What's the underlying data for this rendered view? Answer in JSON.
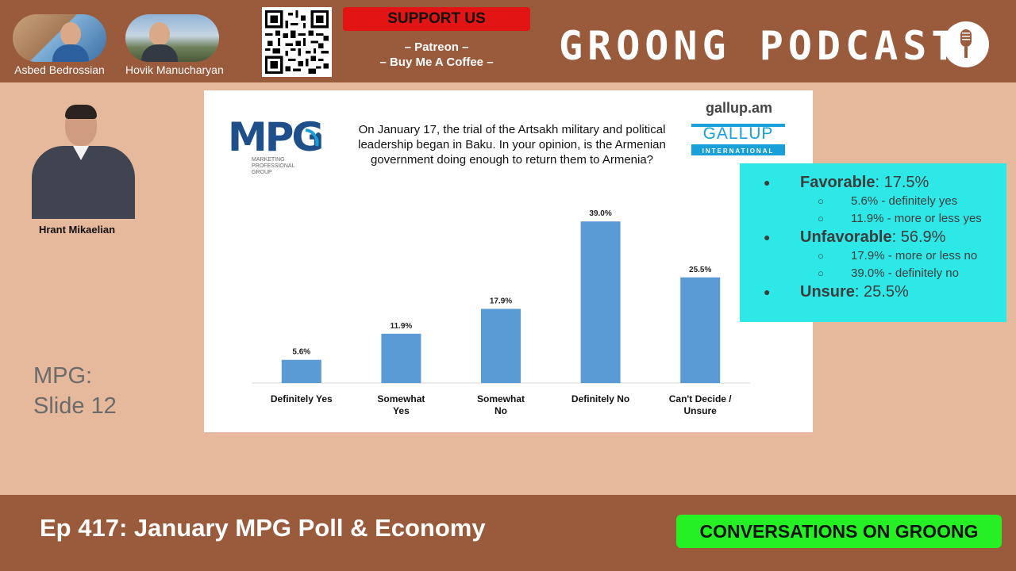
{
  "header": {
    "hosts": [
      {
        "name": "Asbed Bedrossian"
      },
      {
        "name": "Hovik Manucharyan"
      }
    ],
    "support_label": "SUPPORT US",
    "support_links": [
      "– Patreon –",
      "– Buy Me A Coffee –"
    ],
    "show_title": "GROONG PODCAST",
    "qr_icon": "qr-code-icon",
    "mic_icon": "microphone-icon"
  },
  "guest": {
    "name": "Hrant Mikaelian"
  },
  "slide_label": {
    "line1": "MPG:",
    "line2": "Slide 12"
  },
  "slide": {
    "mpg_logo_text": "MPG",
    "mpg_logo_sub": "MARKETING PROFESSIONAL GROUP",
    "question": "On January 17, the trial of the Artsakh military and political leadership began in Baku. In your opinion, is the Armenian government doing enough to return them to Armenia?",
    "gallup_url": "gallup.am",
    "gallup_logo_main": "GALLUP",
    "gallup_logo_sub": "INTERNATIONAL"
  },
  "chart_data": {
    "type": "bar",
    "categories": [
      [
        "Definitely Yes"
      ],
      [
        "Somewhat",
        "Yes"
      ],
      [
        "Somewhat",
        "No"
      ],
      [
        "Definitely No"
      ],
      [
        "Can't Decide /",
        "Unsure"
      ]
    ],
    "values": [
      5.6,
      11.9,
      17.9,
      39.0,
      25.5
    ],
    "value_labels": [
      "5.6%",
      "11.9%",
      "17.9%",
      "39.0%",
      "25.5%"
    ],
    "ylim": [
      0,
      40
    ],
    "bar_color": "#5b9bd5",
    "grid": false,
    "legend": "none"
  },
  "summary": {
    "favorable_label": "Favorable",
    "favorable_value": ": 17.5%",
    "favorable_items": [
      "5.6% - definitely yes",
      "11.9% - more or less yes"
    ],
    "unfavorable_label": "Unfavorable",
    "unfavorable_value": ": 56.9%",
    "unfavorable_items": [
      "17.9% - more or less no",
      "39.0% - definitely no"
    ],
    "unsure_label": "Unsure",
    "unsure_value": ": 25.5%"
  },
  "footer": {
    "episode_title": "Ep 417: January MPG Poll & Economy",
    "show_tagline": "CONVERSATIONS ON GROONG"
  },
  "colors": {
    "bar_brown": "#9a5a3c",
    "background": "#e6b89c",
    "cyan_box": "#2ee8e8",
    "support_red": "#e31414",
    "tagline_green": "#24f024"
  }
}
